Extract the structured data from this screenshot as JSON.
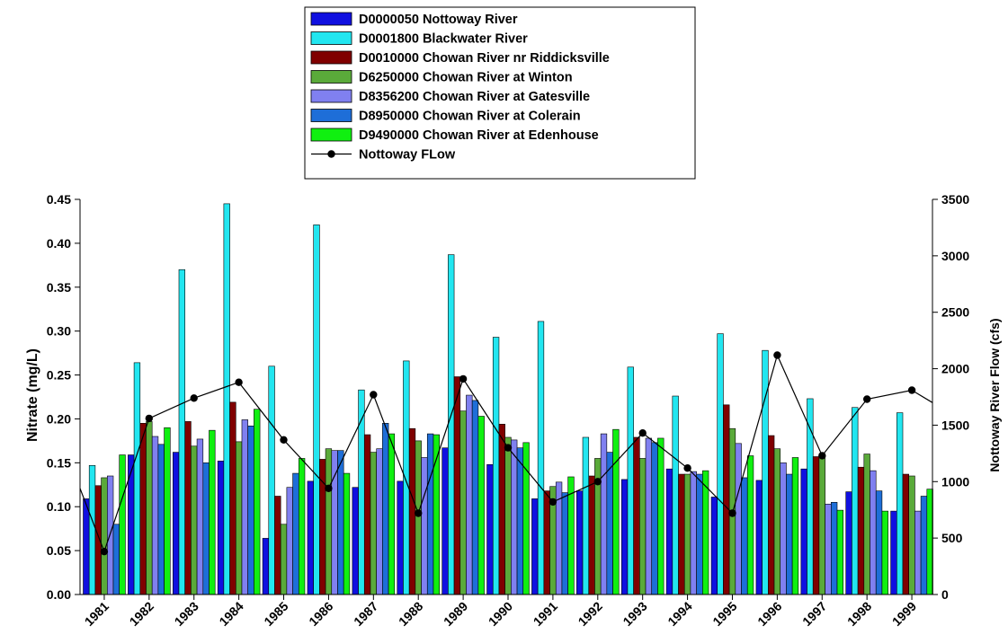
{
  "chart_data": {
    "type": "bar",
    "categories": [
      "1981",
      "1982",
      "1983",
      "1984",
      "1985",
      "1986",
      "1987",
      "1988",
      "1989",
      "1990",
      "1991",
      "1992",
      "1993",
      "1994",
      "1995",
      "1996",
      "1997",
      "1998",
      "1999"
    ],
    "ylabel": "Nitrate (mg/L)",
    "y2label": "Nottoway River Flow (cfs)",
    "ylim": [
      0,
      0.45
    ],
    "y2lim": [
      0,
      3500
    ],
    "yticks": [
      "0.00",
      "0.05",
      "0.10",
      "0.15",
      "0.20",
      "0.25",
      "0.30",
      "0.35",
      "0.40",
      "0.45"
    ],
    "y2ticks": [
      "0",
      "500",
      "1000",
      "1500",
      "2000",
      "2500",
      "3000",
      "3500"
    ],
    "grid": false,
    "legend_position": "top-center",
    "series": [
      {
        "name": "D0000050 Nottoway River",
        "color": "#1010e0",
        "values": [
          0.109,
          0.159,
          0.162,
          0.152,
          0.064,
          0.129,
          0.122,
          0.129,
          0.167,
          0.148,
          0.109,
          0.118,
          0.131,
          0.143,
          0.111,
          0.13,
          0.143,
          0.117,
          0.095
        ]
      },
      {
        "name": "D0001800 Blackwater River",
        "color": "#22e6f0",
        "values": [
          0.147,
          0.264,
          0.37,
          0.445,
          0.26,
          0.421,
          0.233,
          0.266,
          0.387,
          0.293,
          0.311,
          0.179,
          0.259,
          0.226,
          0.297,
          0.278,
          0.223,
          0.213,
          0.207
        ]
      },
      {
        "name": "D0010000 Chowan River nr Riddicksville",
        "color": "#800000",
        "values": [
          0.124,
          0.195,
          0.197,
          0.219,
          0.112,
          0.154,
          0.182,
          0.189,
          0.248,
          0.194,
          0.118,
          0.135,
          0.179,
          0.137,
          0.216,
          0.181,
          0.157,
          0.145,
          0.137
        ]
      },
      {
        "name": "D6250000 Chowan River at Winton",
        "color": "#5aaa3a",
        "values": [
          0.133,
          0.197,
          0.169,
          0.174,
          0.08,
          0.166,
          0.162,
          0.175,
          0.209,
          0.179,
          0.123,
          0.155,
          0.155,
          0.137,
          0.189,
          0.166,
          0.16,
          0.16,
          0.135
        ]
      },
      {
        "name": "D8356200 Chowan River at Gatesville",
        "color": "#8080f0",
        "values": [
          0.135,
          0.18,
          0.177,
          0.199,
          0.122,
          0.164,
          0.166,
          0.156,
          0.227,
          0.176,
          0.128,
          0.183,
          0.178,
          0.14,
          0.172,
          0.15,
          0.103,
          0.141,
          0.095
        ]
      },
      {
        "name": "D8950000 Chowan River at Colerain",
        "color": "#1e6ed8",
        "values": [
          0.08,
          0.171,
          0.15,
          0.192,
          0.138,
          0.164,
          0.195,
          0.183,
          0.221,
          0.167,
          0.116,
          0.162,
          0.173,
          0.137,
          0.133,
          0.137,
          0.105,
          0.118,
          0.112
        ]
      },
      {
        "name": "D9490000 Chowan River at Edenhouse",
        "color": "#10f010",
        "values": [
          0.159,
          0.19,
          0.187,
          0.211,
          0.155,
          0.138,
          0.183,
          0.182,
          0.203,
          0.173,
          0.134,
          0.188,
          0.178,
          0.141,
          0.158,
          0.156,
          0.096,
          0.095,
          0.12
        ]
      }
    ],
    "line_series": {
      "name": "Nottoway FLow",
      "axis": "right",
      "values": [
        380,
        1560,
        1740,
        1880,
        1370,
        940,
        1770,
        720,
        1910,
        1300,
        820,
        1000,
        1430,
        1120,
        720,
        2120,
        1230,
        1730,
        1810
      ],
      "start_value": 940,
      "end_value": 1700
    }
  }
}
